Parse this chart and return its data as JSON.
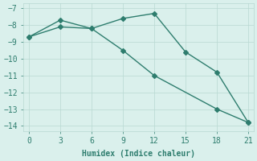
{
  "line1_x": [
    0,
    3,
    6,
    9,
    12,
    15,
    18,
    21
  ],
  "line1_y": [
    -8.7,
    -7.7,
    -8.2,
    -7.6,
    -7.3,
    -9.6,
    -10.8,
    -13.8
  ],
  "line2_x": [
    0,
    3,
    6,
    9,
    12,
    18,
    21
  ],
  "line2_y": [
    -8.7,
    -8.1,
    -8.2,
    -9.5,
    -11.0,
    -13.0,
    -13.8
  ],
  "line_color": "#2e7d6e",
  "marker": "D",
  "markersize": 3,
  "linewidth": 1.0,
  "xlabel": "Humidex (Indice chaleur)",
  "xlim": [
    -0.5,
    21.5
  ],
  "ylim": [
    -14.3,
    -6.7
  ],
  "xticks": [
    0,
    3,
    6,
    9,
    12,
    15,
    18,
    21
  ],
  "yticks": [
    -14,
    -13,
    -12,
    -11,
    -10,
    -9,
    -8,
    -7
  ],
  "bg_color": "#daf0ec",
  "grid_color": "#b8d8d2",
  "font_color": "#2e7d6e",
  "tick_fontsize": 7,
  "xlabel_fontsize": 7
}
